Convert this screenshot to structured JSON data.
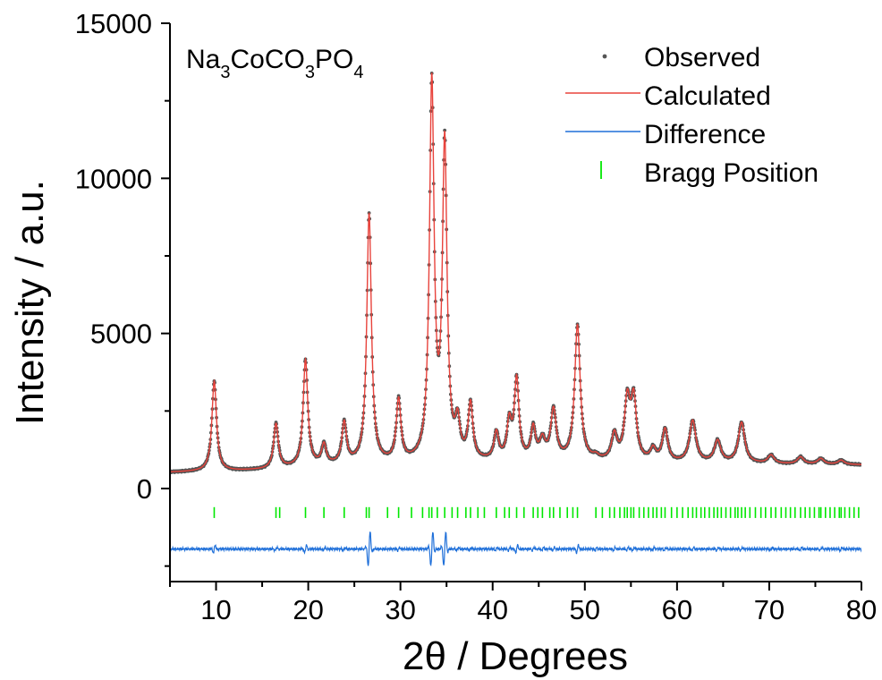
{
  "chart_data": {
    "type": "line",
    "title": "",
    "formula": {
      "parts": [
        {
          "text": "Na",
          "sub": false
        },
        {
          "text": "3",
          "sub": true
        },
        {
          "text": "CoCO",
          "sub": false
        },
        {
          "text": "3",
          "sub": true
        },
        {
          "text": "PO",
          "sub": false
        },
        {
          "text": "4",
          "sub": true
        }
      ]
    },
    "xlabel": "2θ / Degrees",
    "ylabel": "Intensity / a.u.",
    "xlim": [
      5,
      80
    ],
    "ylim": [
      -3000,
      15000
    ],
    "xticks": [
      10,
      20,
      30,
      40,
      50,
      60,
      70,
      80
    ],
    "xtick_labels": [
      "10",
      "20",
      "30",
      "40",
      "50",
      "60",
      "70",
      "80"
    ],
    "yticks": [
      0,
      5000,
      10000,
      15000
    ],
    "ytick_labels": [
      "0",
      "5000",
      "10000",
      "15000"
    ],
    "grid": false,
    "legend_position": "top-right",
    "legend": [
      {
        "label": "Observed",
        "marker": "dot",
        "color": "#555555"
      },
      {
        "label": "Calculated",
        "marker": "line",
        "color": "#e8433c"
      },
      {
        "label": "Difference",
        "marker": "line",
        "color": "#1e6fd9"
      },
      {
        "label": "Bragg Position",
        "marker": "tick",
        "color": "#00e800"
      }
    ],
    "pattern": {
      "background": [
        [
          5,
          520
        ],
        [
          8,
          540
        ],
        [
          12,
          560
        ],
        [
          16,
          600
        ],
        [
          20,
          680
        ],
        [
          25,
          740
        ],
        [
          30,
          760
        ],
        [
          35,
          800
        ],
        [
          40,
          830
        ],
        [
          45,
          850
        ],
        [
          50,
          840
        ],
        [
          55,
          820
        ],
        [
          60,
          800
        ],
        [
          65,
          790
        ],
        [
          70,
          780
        ],
        [
          75,
          770
        ],
        [
          80,
          760
        ]
      ],
      "peaks": [
        {
          "x": 9.8,
          "y": 3450
        },
        {
          "x": 16.5,
          "y": 2050
        },
        {
          "x": 19.7,
          "y": 4100
        },
        {
          "x": 21.7,
          "y": 1350
        },
        {
          "x": 23.9,
          "y": 2050
        },
        {
          "x": 26.6,
          "y": 8800
        },
        {
          "x": 29.8,
          "y": 2750
        },
        {
          "x": 33.4,
          "y": 12900
        },
        {
          "x": 34.8,
          "y": 10900
        },
        {
          "x": 36.2,
          "y": 1900
        },
        {
          "x": 37.6,
          "y": 2600
        },
        {
          "x": 40.4,
          "y": 1700
        },
        {
          "x": 41.8,
          "y": 2000
        },
        {
          "x": 42.6,
          "y": 3400
        },
        {
          "x": 44.4,
          "y": 1850
        },
        {
          "x": 45.4,
          "y": 1450
        },
        {
          "x": 46.6,
          "y": 2450
        },
        {
          "x": 49.2,
          "y": 5200
        },
        {
          "x": 51.2,
          "y": 950
        },
        {
          "x": 53.2,
          "y": 1650
        },
        {
          "x": 54.6,
          "y": 2700
        },
        {
          "x": 55.3,
          "y": 2750
        },
        {
          "x": 57.4,
          "y": 1200
        },
        {
          "x": 58.7,
          "y": 1850
        },
        {
          "x": 61.7,
          "y": 2150
        },
        {
          "x": 64.4,
          "y": 1500
        },
        {
          "x": 67.0,
          "y": 2100
        },
        {
          "x": 70.2,
          "y": 1050
        },
        {
          "x": 73.4,
          "y": 1000
        },
        {
          "x": 75.6,
          "y": 950
        },
        {
          "x": 77.8,
          "y": 900
        }
      ],
      "difference_offset": -1950,
      "bragg_level": [
        -600,
        -950
      ],
      "bragg_positions": [
        9.8,
        16.5,
        16.9,
        19.7,
        21.7,
        23.9,
        26.3,
        26.6,
        28.6,
        29.8,
        31.2,
        32.4,
        33.1,
        33.4,
        34.0,
        34.8,
        35.6,
        36.2,
        37.1,
        37.6,
        38.4,
        39.1,
        40.4,
        41.3,
        41.8,
        42.6,
        43.4,
        44.4,
        44.9,
        45.4,
        46.2,
        46.6,
        47.3,
        48.1,
        48.7,
        49.2,
        51.2,
        51.9,
        52.7,
        53.2,
        53.8,
        54.3,
        54.6,
        55.0,
        55.3,
        55.9,
        56.4,
        56.9,
        57.4,
        57.8,
        58.3,
        58.7,
        59.4,
        60.0,
        60.6,
        61.2,
        61.7,
        62.1,
        62.6,
        63.0,
        63.5,
        64.0,
        64.4,
        64.8,
        65.3,
        65.8,
        66.3,
        66.6,
        67.0,
        67.4,
        67.9,
        68.5,
        69.1,
        69.6,
        70.2,
        70.7,
        71.3,
        71.8,
        72.3,
        72.8,
        73.4,
        73.9,
        74.4,
        74.9,
        75.4,
        75.6,
        76.1,
        76.6,
        77.1,
        77.6,
        77.8,
        78.2,
        78.7,
        79.2,
        79.7
      ]
    }
  },
  "colors": {
    "observed": "#555555",
    "calculated": "#e8433c",
    "difference": "#1e6fd9",
    "bragg": "#00e800",
    "axis": "#000000"
  }
}
